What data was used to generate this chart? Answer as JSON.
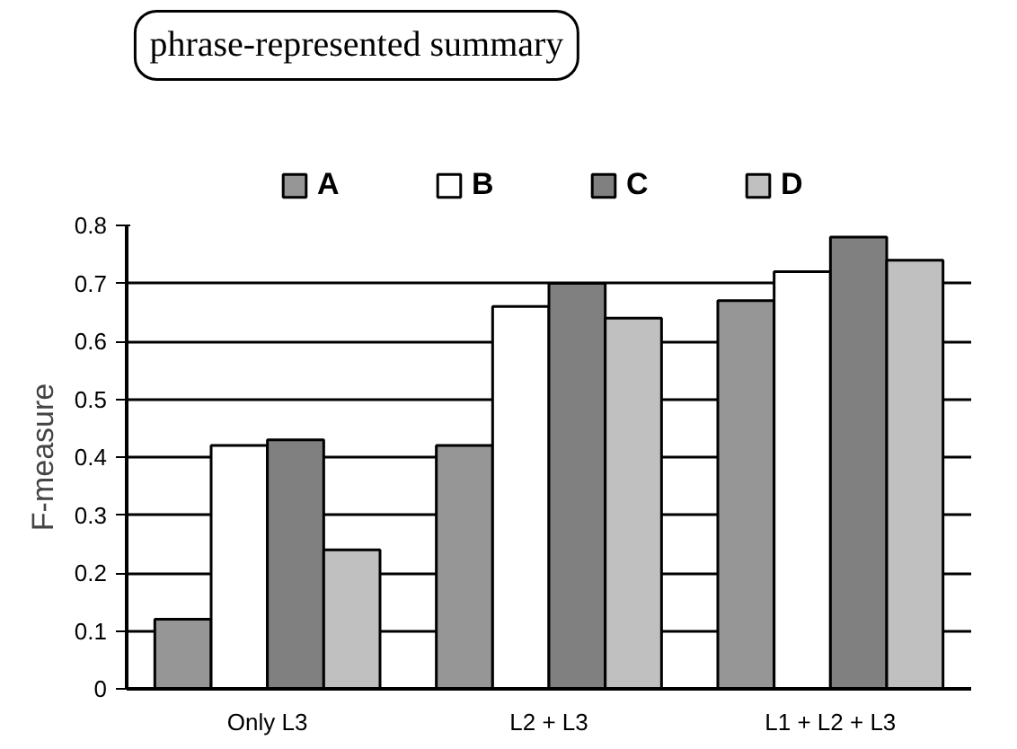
{
  "chart_data": {
    "type": "bar",
    "categories": [
      "Only L3",
      "L2 + L3",
      "L1 + L2 + L3"
    ],
    "series": [
      {
        "name": "A",
        "color": "#969696",
        "values": [
          0.12,
          0.42,
          0.67
        ]
      },
      {
        "name": "B",
        "color": "#ffffff",
        "values": [
          0.42,
          0.66,
          0.72
        ]
      },
      {
        "name": "C",
        "color": "#808080",
        "values": [
          0.43,
          0.7,
          0.78
        ]
      },
      {
        "name": "D",
        "color": "#c0c0c0",
        "values": [
          0.24,
          0.64,
          0.74
        ]
      }
    ],
    "ylabel": "F-measure",
    "ylim": [
      0,
      0.8
    ],
    "yticks": [
      0,
      0.1,
      0.2,
      0.3,
      0.4,
      0.5,
      0.6,
      0.7,
      0.8
    ],
    "grid": "y",
    "legend": "top",
    "annotations": [
      "phrase-represented summary"
    ]
  }
}
